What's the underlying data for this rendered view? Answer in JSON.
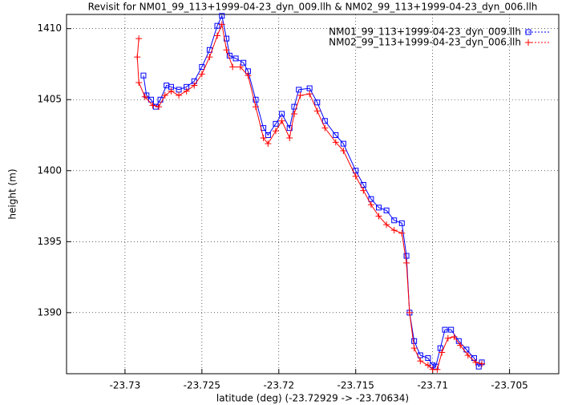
{
  "chart_data": {
    "type": "linepoints",
    "title": "Revisit for NM01_99_113+1999-04-23_dyn_009.llh & NM02_99_113+1999-04-23_dyn_006.llh",
    "xlabel": "latitude (deg) (-23.72929 -> -23.70634)",
    "ylabel": "height (m)",
    "xlim": [
      -23.7338,
      -23.7018
    ],
    "ylim": [
      1385.7,
      1411
    ],
    "xticks": [
      -23.73,
      -23.725,
      -23.72,
      -23.715,
      -23.71,
      -23.705
    ],
    "yticks": [
      1390,
      1395,
      1400,
      1405,
      1410
    ],
    "grid": true,
    "legend": "top-right",
    "series": [
      {
        "name": "NM01_99_113+1999-04-23_dyn_009.llh",
        "color": "#0000ff",
        "marker": "square",
        "x": [
          -23.7288,
          -23.7286,
          -23.7283,
          -23.728,
          -23.7277,
          -23.7273,
          -23.727,
          -23.7265,
          -23.726,
          -23.7255,
          -23.725,
          -23.7245,
          -23.724,
          -23.7237,
          -23.7234,
          -23.7232,
          -23.7228,
          -23.7223,
          -23.722,
          -23.7215,
          -23.721,
          -23.7207,
          -23.7202,
          -23.7198,
          -23.7193,
          -23.719,
          -23.7187,
          -23.718,
          -23.7175,
          -23.717,
          -23.7163,
          -23.7158,
          -23.715,
          -23.7145,
          -23.714,
          -23.7135,
          -23.713,
          -23.7125,
          -23.712,
          -23.7117,
          -23.7115,
          -23.7112,
          -23.7108,
          -23.7103,
          -23.71,
          -23.7098,
          -23.7095,
          -23.7092,
          -23.7088,
          -23.7083,
          -23.7078,
          -23.7073,
          -23.707,
          -23.7068
        ],
        "values": [
          1406.7,
          1405.3,
          1405.0,
          1404.5,
          1405.0,
          1406.0,
          1405.9,
          1405.7,
          1405.9,
          1406.3,
          1407.3,
          1408.5,
          1410.2,
          1410.9,
          1409.3,
          1408.1,
          1407.9,
          1407.6,
          1407.0,
          1405.0,
          1403.0,
          1402.5,
          1403.3,
          1404.0,
          1403.0,
          1404.5,
          1405.7,
          1405.8,
          1404.8,
          1403.5,
          1402.5,
          1401.9,
          1400.0,
          1399.0,
          1398.0,
          1397.4,
          1397.2,
          1396.5,
          1396.3,
          1394.0,
          1390.0,
          1388.0,
          1387.0,
          1386.8,
          1386.3,
          1386.2,
          1387.5,
          1388.8,
          1388.8,
          1388.0,
          1387.4,
          1386.8,
          1386.2,
          1386.5
        ]
      },
      {
        "name": "NM02_99_113+1999-04-23_dyn_006.llh",
        "color": "#ff0000",
        "marker": "plus",
        "x": [
          -23.7291,
          -23.7292,
          -23.7291,
          -23.7287,
          -23.7282,
          -23.7278,
          -23.7274,
          -23.727,
          -23.7265,
          -23.726,
          -23.7255,
          -23.725,
          -23.7245,
          -23.724,
          -23.7237,
          -23.7234,
          -23.723,
          -23.7225,
          -23.722,
          -23.7215,
          -23.721,
          -23.7207,
          -23.7202,
          -23.7198,
          -23.7193,
          -23.719,
          -23.7186,
          -23.718,
          -23.7175,
          -23.717,
          -23.7163,
          -23.7158,
          -23.715,
          -23.7145,
          -23.714,
          -23.7135,
          -23.713,
          -23.7125,
          -23.712,
          -23.7117,
          -23.7115,
          -23.7112,
          -23.7108,
          -23.7103,
          -23.71,
          -23.7097,
          -23.7094,
          -23.709,
          -23.7086,
          -23.7082,
          -23.7077,
          -23.7072,
          -23.7068
        ],
        "values": [
          1409.3,
          1408.0,
          1406.2,
          1405.2,
          1404.6,
          1404.5,
          1405.3,
          1405.6,
          1405.3,
          1405.6,
          1406.0,
          1406.8,
          1408.0,
          1409.5,
          1410.3,
          1408.5,
          1407.3,
          1407.3,
          1406.7,
          1404.5,
          1402.3,
          1401.9,
          1402.8,
          1403.5,
          1402.3,
          1404.0,
          1405.3,
          1405.4,
          1404.2,
          1403.0,
          1402.0,
          1401.4,
          1399.6,
          1398.6,
          1397.6,
          1396.8,
          1396.2,
          1395.8,
          1395.6,
          1393.5,
          1390.0,
          1387.5,
          1386.6,
          1386.3,
          1386.0,
          1386.0,
          1387.2,
          1388.2,
          1388.3,
          1387.7,
          1387.0,
          1386.5,
          1386.4
        ]
      }
    ]
  }
}
